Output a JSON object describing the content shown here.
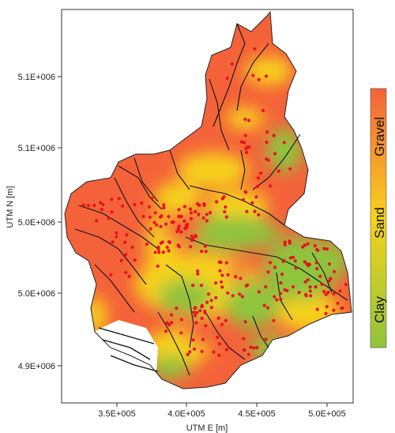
{
  "axes": {
    "x_label": "UTM E [m]",
    "y_label": "UTM N [m]",
    "x_ticks": [
      "3.5E+005",
      "4.0E+005",
      "4.5E+005",
      "5.0E+005"
    ],
    "y_ticks": [
      "5.1E+006",
      "5.1E+006",
      "5.0E+006",
      "5.0E+006",
      "4.9E+006"
    ]
  },
  "legend": {
    "labels": [
      "Gravel",
      "Sand",
      "Clay"
    ],
    "colors": {
      "gravel": "#f4623a",
      "sand": "#f6d21c",
      "clay": "#8fc43c"
    }
  },
  "colors": {
    "points": "#e8131b",
    "lines": "#111111",
    "outline": "#222222",
    "frame": "#333333"
  }
}
